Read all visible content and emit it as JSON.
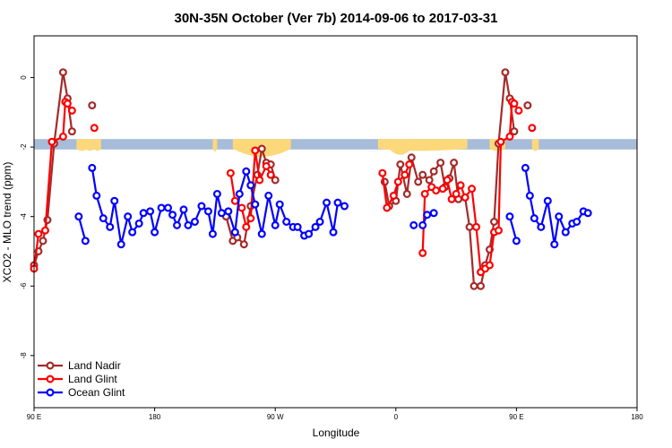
{
  "chart_data": {
    "type": "line",
    "title": "30N-35N October (Ver 7b)   2014-09-06 to 2017-03-31",
    "xlabel": "Longitude",
    "ylabel": "XCO2 - MLO trend (ppm)",
    "xlim": [
      -90,
      180
    ],
    "ylim": [
      -9.5,
      1.2
    ],
    "x_ticks": [
      {
        "value": -90,
        "label": "90 E"
      },
      {
        "value": -36,
        "label": "180"
      },
      {
        "value": 18,
        "label": "90 W"
      },
      {
        "value": 72,
        "label": "0"
      },
      {
        "value": 126,
        "label": "90 E"
      },
      {
        "value": 180,
        "label": "180"
      }
    ],
    "y_ticks": [
      0,
      -2,
      -4,
      -6,
      -8
    ],
    "legend_position": "bottom-left",
    "land_band": {
      "y_range": [
        -2.07,
        -1.77
      ],
      "ocean_color": "#a7bcd8",
      "land_color": "#fdd87a",
      "land_bulges": [
        [
          -71,
          -66,
          -1.95
        ],
        [
          -67,
          -63,
          -2.0
        ],
        [
          -63,
          -60,
          -1.9
        ],
        [
          -1,
          25,
          -2.4
        ],
        [
          -10,
          -8,
          -2.1
        ],
        [
          64,
          104,
          -2.0
        ],
        [
          69,
          79,
          -2.3
        ],
        [
          114,
          121,
          -1.95
        ],
        [
          133,
          136,
          -2.0
        ]
      ]
    },
    "series": [
      {
        "name": "Land Nadir",
        "color": "#a52a2a",
        "segments": [
          [
            [
              -90,
              -5.4
            ],
            [
              -88,
              -5.0
            ],
            [
              -86,
              -4.7
            ],
            [
              -84,
              -4.1
            ],
            [
              -81,
              -1.9
            ],
            [
              -77,
              0.15
            ],
            [
              -75,
              -0.6
            ],
            [
              -73,
              -1.55
            ]
          ],
          [
            [
              -64,
              -0.8
            ]
          ],
          [
            [
              -4,
              -4.0
            ],
            [
              -1,
              -4.7
            ],
            [
              1,
              -4.6
            ],
            [
              4,
              -4.8
            ],
            [
              7,
              -3.7
            ],
            [
              10,
              -2.8
            ],
            [
              12,
              -2.05
            ],
            [
              14,
              -2.45
            ],
            [
              16,
              -2.5
            ],
            [
              18,
              -2.95
            ]
          ],
          [
            [
              67,
              -3.0
            ],
            [
              69,
              -3.7
            ],
            [
              72,
              -3.55
            ],
            [
              74,
              -2.5
            ],
            [
              77,
              -3.35
            ],
            [
              79,
              -2.3
            ],
            [
              82,
              -3.0
            ],
            [
              84,
              -2.8
            ],
            [
              87,
              -2.95
            ],
            [
              89,
              -2.7
            ],
            [
              92,
              -2.45
            ],
            [
              94,
              -3.15
            ],
            [
              96,
              -2.9
            ],
            [
              98,
              -2.45
            ],
            [
              100,
              -3.5
            ],
            [
              103,
              -3.45
            ],
            [
              105,
              -4.3
            ],
            [
              107,
              -6.0
            ],
            [
              110,
              -6.0
            ],
            [
              112,
              -5.4
            ],
            [
              114,
              -4.95
            ],
            [
              116,
              -4.15
            ],
            [
              118,
              -1.9
            ],
            [
              121,
              0.15
            ],
            [
              123,
              -0.6
            ],
            [
              125,
              -1.55
            ]
          ],
          [
            [
              131,
              -0.8
            ]
          ]
        ]
      },
      {
        "name": "Land Glint",
        "color": "#ff0000",
        "segments": [
          [
            [
              -90,
              -5.5
            ],
            [
              -88,
              -4.5
            ],
            [
              -85,
              -4.4
            ],
            [
              -82,
              -1.85
            ],
            [
              -77,
              -1.7
            ],
            [
              -76,
              -0.7
            ],
            [
              -75,
              -0.75
            ],
            [
              -73,
              -0.95
            ]
          ],
          [
            [
              -63,
              -1.45
            ]
          ],
          [
            [
              -2,
              -2.75
            ],
            [
              0,
              -3.55
            ],
            [
              3,
              -3.75
            ],
            [
              5,
              -4.3
            ],
            [
              7,
              -4.05
            ],
            [
              9,
              -2.1
            ],
            [
              11,
              -2.95
            ],
            [
              14,
              -2.55
            ],
            [
              16,
              -2.8
            ]
          ],
          [
            [
              66,
              -2.75
            ],
            [
              68,
              -3.75
            ],
            [
              71,
              -3.4
            ],
            [
              73,
              -3.0
            ],
            [
              76,
              -2.8
            ],
            [
              78,
              -2.5
            ]
          ],
          [
            [
              84,
              -5.05
            ],
            [
              85,
              -3.35
            ],
            [
              88,
              -3.15
            ],
            [
              90,
              -3.25
            ],
            [
              93,
              -3.2
            ],
            [
              95,
              -2.95
            ],
            [
              97,
              -3.5
            ],
            [
              99,
              -3.35
            ],
            [
              101,
              -3.1
            ],
            [
              103,
              -3.45
            ],
            [
              106,
              -3.2
            ],
            [
              108,
              -4.3
            ],
            [
              110,
              -5.6
            ],
            [
              112,
              -5.5
            ],
            [
              114,
              -5.4
            ],
            [
              116,
              -4.45
            ],
            [
              118,
              -4.4
            ],
            [
              119,
              -1.85
            ],
            [
              123,
              -1.7
            ],
            [
              124,
              -0.7
            ],
            [
              125,
              -0.75
            ],
            [
              127,
              -0.95
            ]
          ],
          [
            [
              133,
              -1.45
            ]
          ]
        ]
      },
      {
        "name": "Ocean Glint",
        "color": "#0000ff",
        "segments": [
          [
            [
              -70,
              -4.0
            ],
            [
              -67,
              -4.7
            ]
          ],
          [
            [
              -64,
              -2.6
            ],
            [
              -62,
              -3.4
            ],
            [
              -59,
              -4.05
            ],
            [
              -56,
              -4.3
            ],
            [
              -54,
              -3.55
            ],
            [
              -51,
              -4.8
            ],
            [
              -48,
              -4.0
            ],
            [
              -46,
              -4.45
            ],
            [
              -43,
              -4.2
            ],
            [
              -41,
              -3.9
            ],
            [
              -38,
              -3.85
            ],
            [
              -36,
              -4.45
            ],
            [
              -33,
              -3.75
            ],
            [
              -30,
              -3.75
            ],
            [
              -28,
              -3.95
            ],
            [
              -26,
              -4.25
            ],
            [
              -23,
              -3.8
            ],
            [
              -21,
              -4.25
            ],
            [
              -18,
              -4.15
            ],
            [
              -15,
              -3.7
            ],
            [
              -12,
              -3.85
            ],
            [
              -10,
              -4.5
            ],
            [
              -8,
              -3.35
            ],
            [
              -6,
              -3.9
            ],
            [
              -3,
              -3.85
            ],
            [
              0,
              -4.45
            ],
            [
              2,
              -3.35
            ],
            [
              5,
              -2.7
            ],
            [
              7,
              -3.1
            ],
            [
              9,
              -3.65
            ],
            [
              12,
              -4.5
            ],
            [
              15,
              -3.4
            ],
            [
              18,
              -4.25
            ],
            [
              20,
              -3.65
            ],
            [
              23,
              -4.15
            ],
            [
              26,
              -4.3
            ],
            [
              28,
              -4.3
            ],
            [
              31,
              -4.55
            ],
            [
              33,
              -4.5
            ],
            [
              36,
              -4.3
            ],
            [
              38,
              -4.15
            ],
            [
              41,
              -3.6
            ],
            [
              44,
              -4.45
            ],
            [
              46,
              -3.6
            ],
            [
              49,
              -3.7
            ]
          ],
          [
            [
              80,
              -4.25
            ]
          ],
          [
            [
              84,
              -4.25
            ],
            [
              86,
              -3.95
            ],
            [
              89,
              -3.9
            ]
          ],
          [
            [
              123,
              -4.0
            ],
            [
              126,
              -4.7
            ]
          ],
          [
            [
              130,
              -2.6
            ],
            [
              132,
              -3.4
            ],
            [
              134,
              -4.05
            ],
            [
              137,
              -4.3
            ],
            [
              140,
              -3.55
            ],
            [
              143,
              -4.8
            ],
            [
              145,
              -4.0
            ],
            [
              148,
              -4.45
            ],
            [
              151,
              -4.2
            ],
            [
              153,
              -4.15
            ],
            [
              156,
              -3.85
            ],
            [
              158,
              -3.9
            ]
          ]
        ]
      }
    ]
  }
}
